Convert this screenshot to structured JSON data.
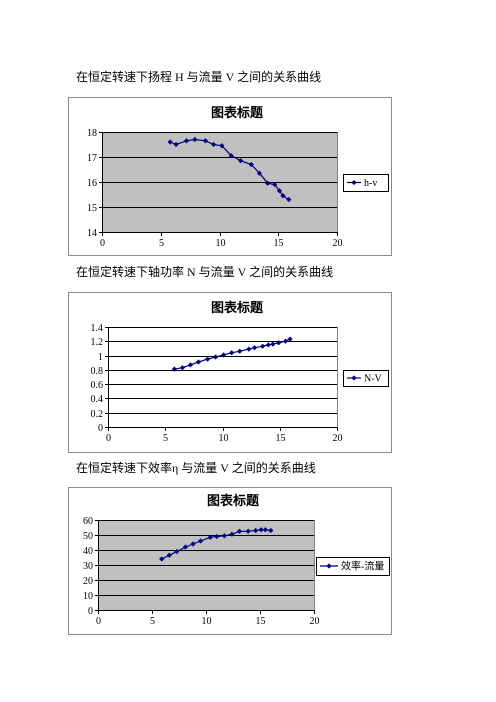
{
  "document": {
    "captions": [
      "在恒定转速下扬程 H 与流量 V 之间的关系曲线",
      "在恒定转速下轴功率 N 与流量 V 之间的关系曲线",
      "在恒定转速下效率η 与流量 V 之间的关系曲线"
    ]
  },
  "chart_data": [
    {
      "type": "line",
      "title": "图表标题",
      "xlim": [
        0,
        20
      ],
      "ylim": [
        14,
        18
      ],
      "xticks": [
        0,
        5,
        10,
        15,
        20
      ],
      "yticks": [
        14,
        15,
        16,
        17,
        18
      ],
      "grid": true,
      "legend": "right",
      "plot_background": "#C0C0C0",
      "series": [
        {
          "name": "h-v",
          "color": "#000080",
          "x": [
            5.8,
            6.3,
            7.2,
            7.9,
            8.8,
            9.5,
            10.2,
            11.0,
            11.8,
            12.7,
            13.4,
            14.1,
            14.7,
            15.1,
            15.4,
            15.9
          ],
          "y": [
            17.6,
            17.5,
            17.65,
            17.7,
            17.65,
            17.5,
            17.45,
            17.05,
            16.85,
            16.7,
            16.35,
            15.95,
            15.9,
            15.65,
            15.45,
            15.3
          ]
        }
      ]
    },
    {
      "type": "line",
      "title": "图表标题",
      "xlim": [
        0,
        20
      ],
      "ylim": [
        0,
        1.4
      ],
      "xticks": [
        0,
        5,
        10,
        15,
        20
      ],
      "yticks": [
        0,
        0.2,
        0.4,
        0.6,
        0.8,
        1,
        1.2,
        1.4
      ],
      "grid": true,
      "legend": "right",
      "plot_background": "#FFFFFF",
      "series": [
        {
          "name": "N-V",
          "color": "#000080",
          "x": [
            5.8,
            6.5,
            7.2,
            7.9,
            8.7,
            9.4,
            10.1,
            10.8,
            11.5,
            12.3,
            12.8,
            13.5,
            14.0,
            14.4,
            14.9,
            15.5,
            15.9
          ],
          "y": [
            0.81,
            0.83,
            0.87,
            0.91,
            0.95,
            0.98,
            1.01,
            1.04,
            1.06,
            1.09,
            1.11,
            1.13,
            1.15,
            1.16,
            1.18,
            1.2,
            1.23
          ]
        }
      ]
    },
    {
      "type": "line",
      "title": "图表标题",
      "xlim": [
        0,
        20
      ],
      "ylim": [
        0,
        60
      ],
      "xticks": [
        0,
        5,
        10,
        15,
        20
      ],
      "yticks": [
        0,
        10,
        20,
        30,
        40,
        50,
        60
      ],
      "grid": true,
      "legend": "right",
      "plot_background": "#C0C0C0",
      "series": [
        {
          "name": "效率-流量",
          "color": "#000080",
          "x": [
            5.9,
            6.6,
            7.3,
            8.1,
            8.8,
            9.5,
            10.4,
            11.0,
            11.7,
            12.4,
            13.1,
            13.9,
            14.6,
            15.1,
            15.5,
            16.0
          ],
          "y": [
            34,
            36.5,
            39,
            42,
            44,
            46,
            48.5,
            49,
            49.5,
            50.5,
            52.5,
            52.5,
            53,
            53.5,
            53.5,
            53
          ]
        }
      ]
    }
  ]
}
